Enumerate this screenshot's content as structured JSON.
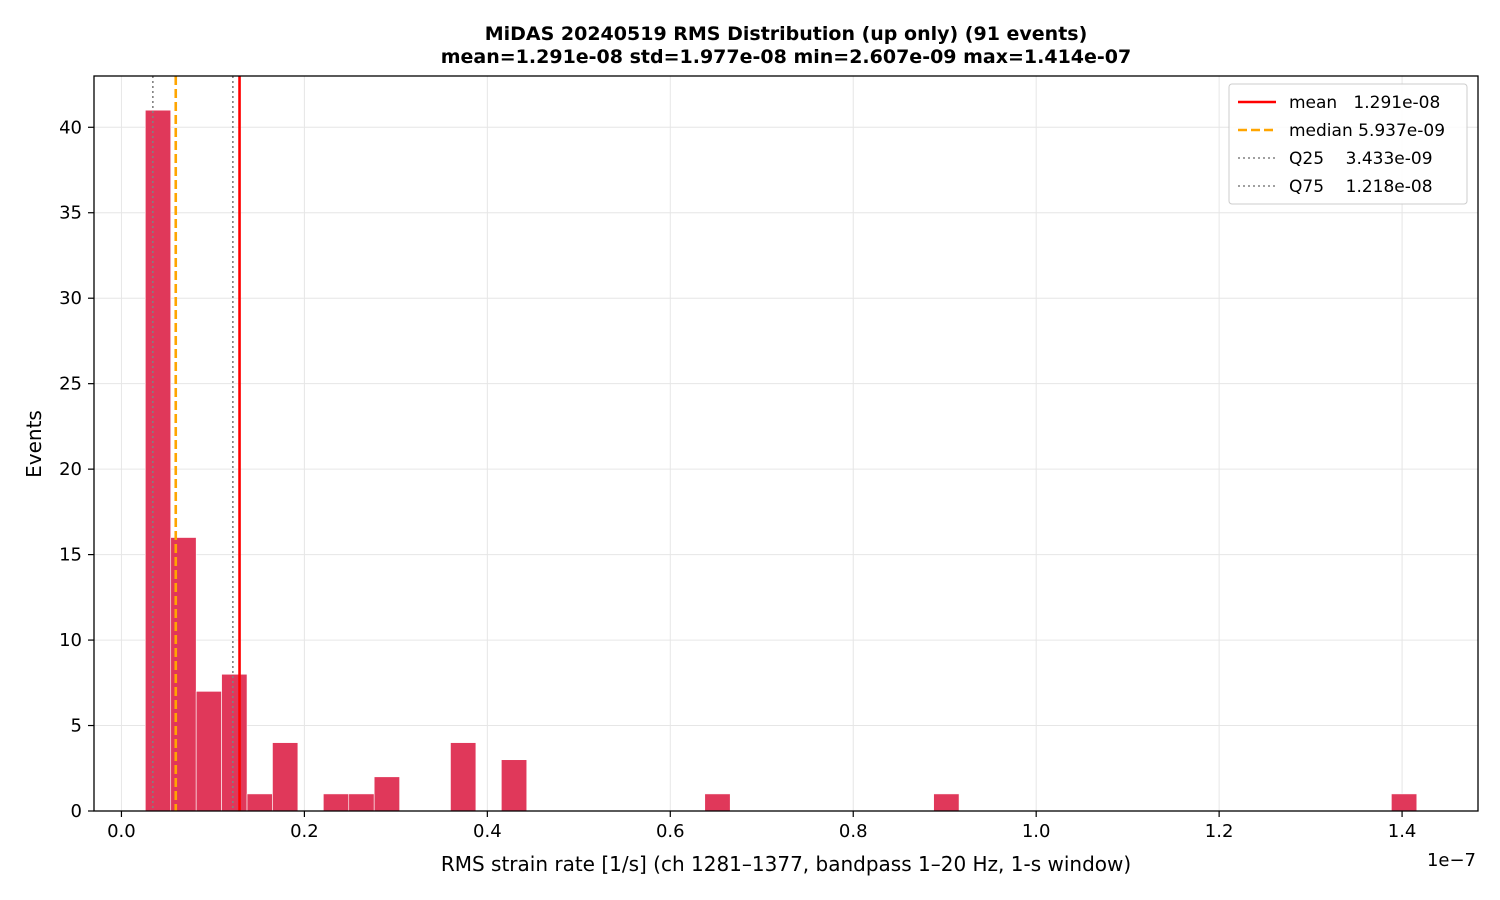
{
  "chart_data": {
    "type": "bar",
    "title_line1": "MiDAS 20240519  RMS Distribution  (up only)  (91 events)",
    "title_line2": "mean=1.291e-08  std=1.977e-08  min=2.607e-09  max=1.414e-07",
    "xlabel": "RMS strain rate [1/s]  (ch 1281–1377, bandpass 1–20 Hz, 1-s window)",
    "ylabel": "Events",
    "x_offset_label": "1e−7",
    "x_scale": 1e-07,
    "xlim": [
      -0.03,
      1.483
    ],
    "ylim": [
      0,
      43
    ],
    "xticks": [
      0.0,
      0.2,
      0.4,
      0.6,
      0.8,
      1.0,
      1.2,
      1.4
    ],
    "xtick_labels": [
      "0.0",
      "0.2",
      "0.4",
      "0.6",
      "0.8",
      "1.0",
      "1.2",
      "1.4"
    ],
    "yticks": [
      0,
      5,
      10,
      15,
      20,
      25,
      30,
      35,
      40
    ],
    "ytick_labels": [
      "0",
      "5",
      "10",
      "15",
      "20",
      "25",
      "30",
      "35",
      "40"
    ],
    "grid": true,
    "bar_color": "#e0385a",
    "bin_width": 0.0278,
    "bins": [
      {
        "x0": 0.0261,
        "count": 41
      },
      {
        "x0": 0.0539,
        "count": 16
      },
      {
        "x0": 0.0817,
        "count": 7
      },
      {
        "x0": 0.1095,
        "count": 8
      },
      {
        "x0": 0.1373,
        "count": 1
      },
      {
        "x0": 0.1651,
        "count": 4
      },
      {
        "x0": 0.2207,
        "count": 1
      },
      {
        "x0": 0.2485,
        "count": 1
      },
      {
        "x0": 0.2763,
        "count": 2
      },
      {
        "x0": 0.3597,
        "count": 4
      },
      {
        "x0": 0.4153,
        "count": 3
      },
      {
        "x0": 0.6377,
        "count": 1
      },
      {
        "x0": 0.8879,
        "count": 1
      },
      {
        "x0": 1.3883,
        "count": 1
      }
    ],
    "reference_lines": [
      {
        "name": "mean",
        "value": 0.1291,
        "label": "mean   1.291e-08",
        "color": "#ff0000",
        "style": "solid"
      },
      {
        "name": "median",
        "value": 0.05937,
        "label": "median 5.937e-09",
        "color": "#ffa500",
        "style": "dashed"
      },
      {
        "name": "Q25",
        "value": 0.03433,
        "label": "Q25    3.433e-09",
        "color": "#808080",
        "style": "dotted"
      },
      {
        "name": "Q75",
        "value": 0.1218,
        "label": "Q75    1.218e-08",
        "color": "#808080",
        "style": "dotted"
      }
    ],
    "legend_position": "top-right"
  }
}
